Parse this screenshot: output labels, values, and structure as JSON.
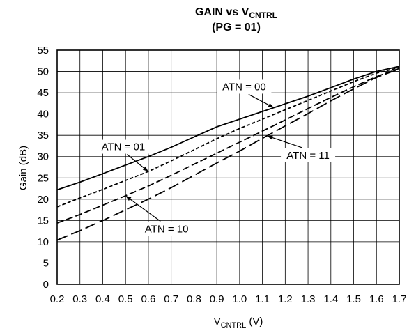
{
  "chart_data": {
    "type": "line",
    "title_line1_main": "GAIN vs V",
    "title_line1_sub": "CNTRL",
    "title_line2": "(PG = 01)",
    "xlabel_main": "V",
    "xlabel_sub": "CNTRL",
    "xlabel_unit": " (V)",
    "ylabel": "Gain (dB)",
    "xlim": [
      0.2,
      1.7
    ],
    "ylim": [
      0,
      55
    ],
    "grid": true,
    "x_ticks": [
      "0.2",
      "0.3",
      "0.4",
      "0.5",
      "0.6",
      "0.7",
      "0.8",
      "0.9",
      "1.0",
      "1.1",
      "1.2",
      "1.3",
      "1.4",
      "1.5",
      "1.6",
      "1.7"
    ],
    "y_ticks": [
      "0",
      "5",
      "10",
      "15",
      "20",
      "25",
      "30",
      "35",
      "40",
      "45",
      "50",
      "55"
    ],
    "series": [
      {
        "name": "ATN = 00",
        "dash": "solid",
        "x": [
          0.2,
          0.3,
          0.4,
          0.5,
          0.6,
          0.7,
          0.8,
          0.9,
          1.0,
          1.1,
          1.2,
          1.3,
          1.4,
          1.5,
          1.6,
          1.7
        ],
        "y": [
          22.2,
          24,
          26,
          28,
          30,
          32.2,
          34.6,
          37,
          38.8,
          40.6,
          42.4,
          44.2,
          46.2,
          48.2,
          50,
          51.2
        ]
      },
      {
        "name": "ATN = 01",
        "dash": "short",
        "x": [
          0.2,
          0.3,
          0.4,
          0.5,
          0.6,
          0.7,
          0.8,
          0.9,
          1.0,
          1.1,
          1.2,
          1.3,
          1.4,
          1.5,
          1.6,
          1.7
        ],
        "y": [
          18.2,
          20.3,
          22.3,
          24.4,
          26.5,
          29,
          31.6,
          34.2,
          36.6,
          38.8,
          41,
          43.2,
          45.4,
          47.6,
          49.6,
          50.9
        ]
      },
      {
        "name": "ATN = 10",
        "dash": "medium",
        "x": [
          0.2,
          0.3,
          0.4,
          0.5,
          0.6,
          0.7,
          0.8,
          0.9,
          1.0,
          1.1,
          1.2,
          1.3,
          1.4,
          1.5,
          1.6,
          1.7
        ],
        "y": [
          14.4,
          16.4,
          18.6,
          20.8,
          23.1,
          25.6,
          28.2,
          30.8,
          33.4,
          36,
          38.6,
          41.3,
          43.9,
          46.4,
          48.8,
          50.7
        ]
      },
      {
        "name": "ATN = 11",
        "dash": "long",
        "x": [
          0.2,
          0.3,
          0.4,
          0.5,
          0.6,
          0.7,
          0.8,
          0.9,
          1.0,
          1.1,
          1.2,
          1.3,
          1.4,
          1.5,
          1.6,
          1.7
        ],
        "y": [
          10.4,
          12.6,
          15,
          17.5,
          20,
          22.7,
          25.6,
          28.5,
          31.3,
          34.3,
          37.2,
          40.1,
          43.1,
          45.9,
          48.6,
          50.6
        ]
      }
    ],
    "annotations": [
      {
        "text": "ATN = 00",
        "series": 0,
        "point_x": 1.15,
        "label_x": 1.02,
        "label_y": 45.6,
        "anchor": "middle"
      },
      {
        "text": "ATN = 01",
        "series": 1,
        "point_x": 0.6,
        "label_x": 0.49,
        "label_y": 31.5,
        "anchor": "middle"
      },
      {
        "text": "ATN = 10",
        "series": 2,
        "point_x": 0.5,
        "label_x": 0.68,
        "label_y": 12.2,
        "anchor": "middle"
      },
      {
        "text": "ATN = 11",
        "series": 3,
        "point_x": 1.12,
        "label_x": 1.3,
        "label_y": 29.5,
        "anchor": "middle"
      }
    ]
  }
}
